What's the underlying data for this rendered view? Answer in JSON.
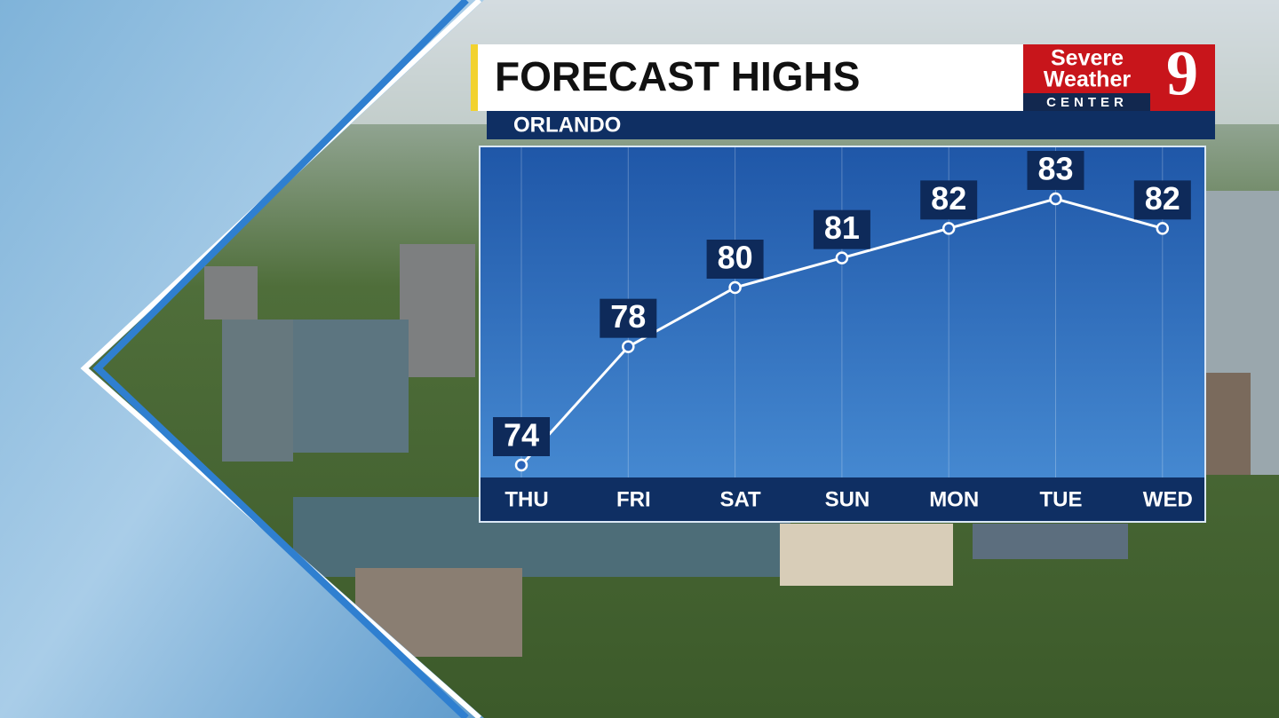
{
  "chart_data": {
    "type": "line",
    "title": "FORECAST HIGHS",
    "subtitle": "ORLANDO",
    "categories": [
      "THU",
      "FRI",
      "SAT",
      "SUN",
      "MON",
      "TUE",
      "WED"
    ],
    "values": [
      74,
      78,
      80,
      81,
      82,
      83,
      82
    ],
    "color": "#ffffff"
  },
  "logo": {
    "line1": "Severe",
    "line2": "Weather",
    "line3": "CENTER",
    "number": "9"
  }
}
